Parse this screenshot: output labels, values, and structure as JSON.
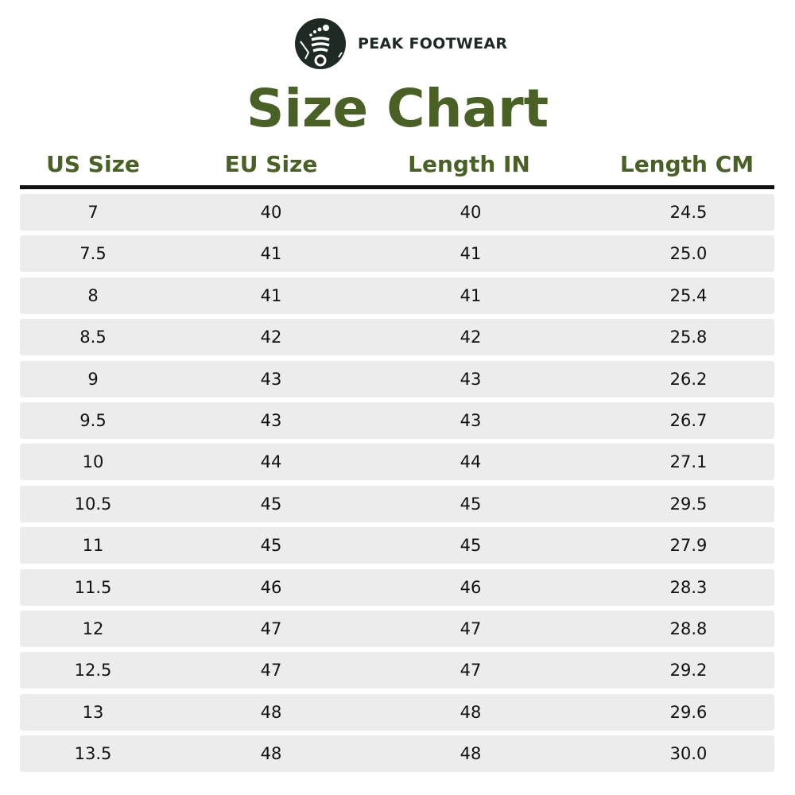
{
  "brand": {
    "name": "PEAK FOOTWEAR",
    "logo_icon": "footprint-mountain-logo"
  },
  "title": "Size Chart",
  "colors": {
    "accent": "#4a6125",
    "row_bg": "#ececec",
    "text": "#111111"
  },
  "table": {
    "headers": [
      "US Size",
      "EU Size",
      "Length IN",
      "Length CM"
    ],
    "rows": [
      [
        "7",
        "40",
        "40",
        "24.5"
      ],
      [
        "7.5",
        "41",
        "41",
        "25.0"
      ],
      [
        "8",
        "41",
        "41",
        "25.4"
      ],
      [
        "8.5",
        "42",
        "42",
        "25.8"
      ],
      [
        "9",
        "43",
        "43",
        "26.2"
      ],
      [
        "9.5",
        "43",
        "43",
        "26.7"
      ],
      [
        "10",
        "44",
        "44",
        "27.1"
      ],
      [
        "10.5",
        "45",
        "45",
        "29.5"
      ],
      [
        "11",
        "45",
        "45",
        "27.9"
      ],
      [
        "11.5",
        "46",
        "46",
        "28.3"
      ],
      [
        "12",
        "47",
        "47",
        "28.8"
      ],
      [
        "12.5",
        "47",
        "47",
        "29.2"
      ],
      [
        "13",
        "48",
        "48",
        "29.6"
      ],
      [
        "13.5",
        "48",
        "48",
        "30.0"
      ]
    ]
  }
}
